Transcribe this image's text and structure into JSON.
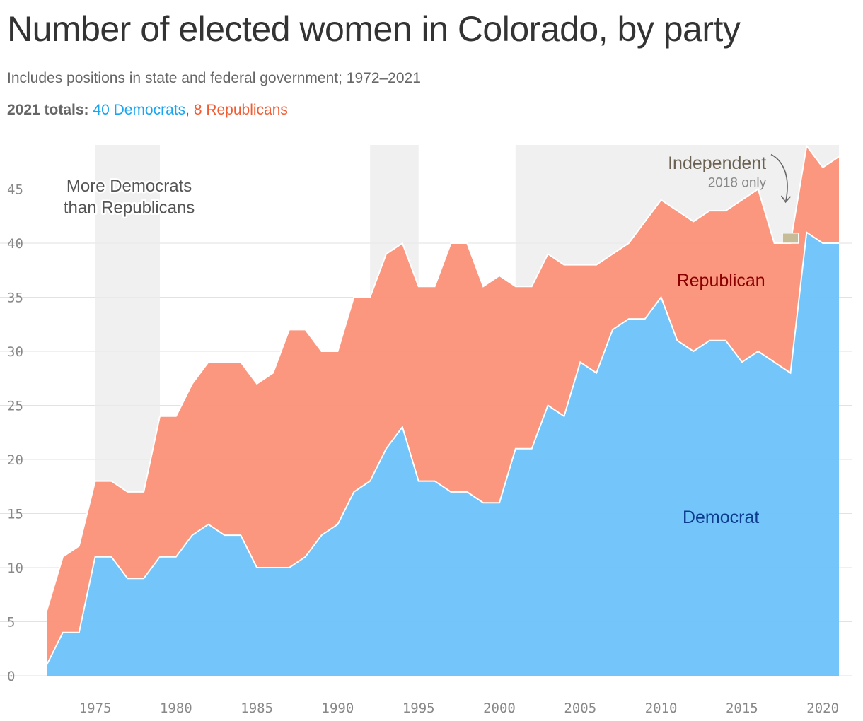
{
  "header": {
    "title": "Number of elected women in Colorado, by party",
    "subtitle": "Includes positions in state and federal government; 1972–2021",
    "totals_label": "2021 totals:",
    "totals_dem": "40 Democrats",
    "totals_sep": ",",
    "totals_rep": "8 Republicans"
  },
  "chart_data": {
    "type": "area",
    "title": "Number of elected women in Colorado, by party",
    "subtitle": "Includes positions in state and federal government; 1972–2021",
    "xlim": [
      1972,
      2021
    ],
    "ylim": [
      0,
      49
    ],
    "x_ticks": [
      1975,
      1980,
      1985,
      1990,
      1995,
      2000,
      2005,
      2010,
      2015,
      2020
    ],
    "y_ticks": [
      0,
      5,
      10,
      15,
      20,
      25,
      30,
      35,
      40,
      45
    ],
    "grid": true,
    "stacked": true,
    "x": [
      1972,
      1973,
      1974,
      1975,
      1976,
      1977,
      1978,
      1979,
      1980,
      1981,
      1982,
      1983,
      1984,
      1985,
      1986,
      1987,
      1988,
      1989,
      1990,
      1991,
      1992,
      1993,
      1994,
      1995,
      1996,
      1997,
      1998,
      1999,
      2000,
      2001,
      2002,
      2003,
      2004,
      2005,
      2006,
      2007,
      2008,
      2009,
      2010,
      2011,
      2012,
      2013,
      2014,
      2015,
      2016,
      2017,
      2018,
      2019,
      2020,
      2021
    ],
    "series": [
      {
        "name": "Democrat",
        "color": "#6cc2fa",
        "values": [
          1,
          4,
          4,
          11,
          11,
          9,
          9,
          11,
          11,
          13,
          14,
          13,
          13,
          10,
          10,
          10,
          11,
          13,
          14,
          17,
          18,
          21,
          23,
          18,
          18,
          17,
          17,
          16,
          16,
          21,
          21,
          25,
          24,
          29,
          28,
          32,
          33,
          33,
          35,
          31,
          30,
          31,
          31,
          29,
          30,
          29,
          28,
          41,
          40,
          40
        ]
      },
      {
        "name": "Republican",
        "color": "#fa9177",
        "values": [
          5,
          7,
          8,
          7,
          7,
          8,
          8,
          13,
          13,
          14,
          15,
          16,
          16,
          17,
          18,
          22,
          21,
          17,
          16,
          18,
          17,
          18,
          17,
          18,
          18,
          23,
          23,
          20,
          21,
          15,
          15,
          14,
          14,
          9,
          10,
          7,
          7,
          9,
          9,
          12,
          12,
          12,
          12,
          15,
          15,
          11,
          12,
          8,
          7,
          8
        ]
      },
      {
        "name": "Independent",
        "color": "#c7bc98",
        "values": [
          0,
          0,
          0,
          0,
          0,
          0,
          0,
          0,
          0,
          0,
          0,
          0,
          0,
          0,
          0,
          0,
          0,
          0,
          0,
          0,
          0,
          0,
          0,
          0,
          0,
          0,
          0,
          0,
          0,
          0,
          0,
          0,
          0,
          0,
          0,
          0,
          0,
          0,
          0,
          0,
          0,
          0,
          0,
          0,
          0,
          0,
          1,
          0,
          0,
          0
        ]
      }
    ],
    "shaded_periods": [
      [
        1975,
        1979
      ],
      [
        1992,
        1995
      ],
      [
        2001,
        2021
      ]
    ],
    "annotations": {
      "shaded_label": [
        "More Democrats",
        "than Republicans"
      ],
      "independent_label": "Independent",
      "independent_note": "2018 only",
      "republican_label": "Republican",
      "democrat_label": "Democrat"
    },
    "colors": {
      "democrat": "#6cc2fa",
      "republican": "#fa9177",
      "independent": "#c7bc98",
      "shade": "#ebebeb",
      "democrat_text": "#0d3b8e",
      "republican_text": "#8b0000",
      "independent_text": "#6b6152"
    }
  }
}
